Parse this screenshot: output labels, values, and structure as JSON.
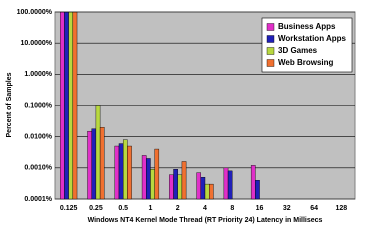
{
  "chart_data": {
    "type": "bar",
    "x_label": "Windows NT4 Kernel Mode Thread (RT Priority 24) Latency in Millisecs",
    "y_label": "Percent of Samples",
    "categories": [
      "0.125",
      "0.25",
      "0.5",
      "1",
      "2",
      "4",
      "8",
      "16",
      "32",
      "64",
      "128"
    ],
    "series": [
      {
        "name": "Business Apps",
        "color": "#e030c8",
        "values": [
          99,
          0.015,
          0.005,
          0.0025,
          0.0006,
          0.0007,
          0.001,
          0.0012,
          null,
          null,
          null
        ]
      },
      {
        "name": "Workstation Apps",
        "color": "#2020b8",
        "values": [
          99,
          0.018,
          0.006,
          0.002,
          0.0009,
          0.0005,
          0.0008,
          0.0004,
          null,
          null,
          null
        ]
      },
      {
        "name": "3D Games",
        "color": "#b8d840",
        "values": [
          99,
          0.1,
          0.008,
          0.0009,
          0.0006,
          0.0003,
          null,
          null,
          null,
          null,
          null
        ]
      },
      {
        "name": "Web Browsing",
        "color": "#f07030",
        "values": [
          99,
          0.02,
          0.005,
          0.004,
          0.0016,
          0.0003,
          null,
          null,
          null,
          null,
          null
        ]
      }
    ],
    "log_scale": true,
    "ylim": [
      0.0001,
      100
    ],
    "yticks": [
      {
        "value": 100,
        "label": "100.0000%"
      },
      {
        "value": 10,
        "label": "10.0000%"
      },
      {
        "value": 1,
        "label": "1.0000%"
      },
      {
        "value": 0.1,
        "label": "0.1000%"
      },
      {
        "value": 0.01,
        "label": "0.0100%"
      },
      {
        "value": 0.001,
        "label": "0.0010%"
      },
      {
        "value": 0.0001,
        "label": "0.0001%"
      }
    ],
    "grid": true,
    "legend": "top-right"
  }
}
